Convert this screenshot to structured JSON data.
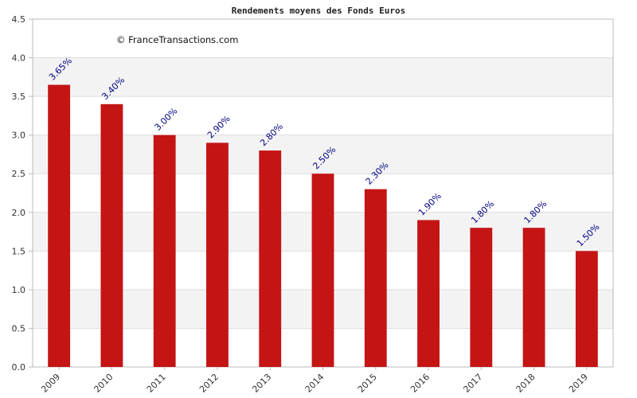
{
  "chart_data": {
    "type": "bar",
    "title": "Rendements moyens des Fonds Euros",
    "watermark": "© FranceTransactions.com",
    "xlabel": "",
    "ylabel": "",
    "categories": [
      "2009",
      "2010",
      "2011",
      "2012",
      "2013",
      "2014",
      "2015",
      "2016",
      "2017",
      "2018",
      "2019"
    ],
    "values": [
      3.65,
      3.4,
      3.0,
      2.9,
      2.8,
      2.5,
      2.3,
      1.9,
      1.8,
      1.8,
      1.5
    ],
    "data_labels": [
      "3.65%",
      "3.40%",
      "3.00%",
      "2.90%",
      "2.80%",
      "2.50%",
      "2.30%",
      "1.90%",
      "1.80%",
      "1.80%",
      "1.50%"
    ],
    "ylim": [
      0,
      4.5
    ],
    "yticks": [
      "0.0",
      "0.5",
      "1.0",
      "1.5",
      "2.0",
      "2.5",
      "3.0",
      "3.5",
      "4.0",
      "4.5"
    ],
    "grid": true,
    "legend": "none",
    "colors": {
      "bar": "#C41414",
      "data_label": "#000080",
      "band_alt": "#F3F3F3",
      "gridline": "#DDDDDD",
      "axis": "#BBBBBB"
    }
  }
}
